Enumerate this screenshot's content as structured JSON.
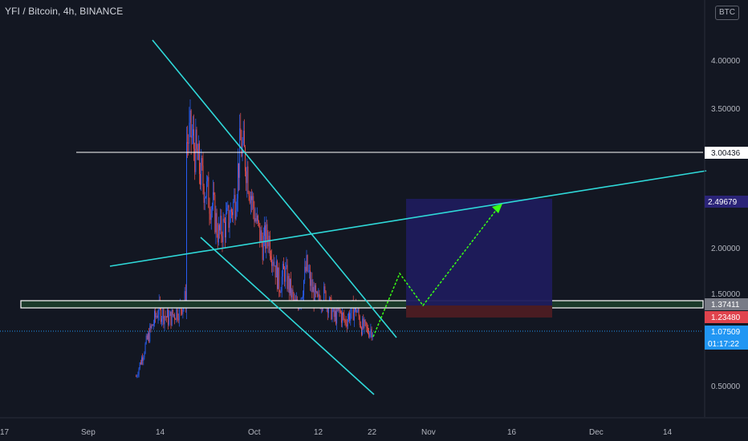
{
  "header": {
    "title": "YFI / Bitcoin, 4h, BINANCE",
    "currency": "BTC"
  },
  "colors": {
    "background": "#131722",
    "up": "#2962ff",
    "down": "#ef5350",
    "trendline": "#2fd9d9",
    "projection": "#39ff14",
    "target_box": "#1e1b5c",
    "stop_box": "#4a1c22",
    "support_fill": "#1b3a2a",
    "lastprice": "#2196f3"
  },
  "price_labels": {
    "resistance": "3.00436",
    "target": "2.49679",
    "support_top": "1.37411",
    "stop": "1.23480",
    "last": "1.07509",
    "countdown": "01:17:22"
  },
  "chart_data": {
    "type": "candlestick",
    "title": "YFI / Bitcoin, 4h, BINANCE",
    "y_unit": "BTC",
    "y_ticks": [
      "4.00000",
      "3.50000",
      "2.00000",
      "1.50000",
      "0.50000"
    ],
    "x_ticks": [
      "17",
      "Sep",
      "14",
      "Oct",
      "12",
      "22",
      "Nov",
      "16",
      "Dec",
      "14"
    ],
    "y_range": [
      0.3,
      4.3
    ],
    "price_path": [
      [
        "Aug 21",
        0.55
      ],
      [
        "Aug 23",
        0.95
      ],
      [
        "Aug 25",
        1.28
      ],
      [
        "Aug 27",
        1.18
      ],
      [
        "Aug 29",
        1.3
      ],
      [
        "Aug 30",
        1.4
      ],
      [
        "Sep 1",
        1.6
      ],
      [
        "Sep 2",
        2.4
      ],
      [
        "Sep 3",
        3.1
      ],
      [
        "Sep 4",
        3.3
      ],
      [
        "Sep 5",
        2.9
      ],
      [
        "Sep 6",
        3.05
      ],
      [
        "Sep 7",
        2.6
      ],
      [
        "Sep 8",
        2.1
      ],
      [
        "Sep 9",
        2.5
      ],
      [
        "Sep 10",
        2.1
      ],
      [
        "Sep 11",
        2.3
      ],
      [
        "Sep 12",
        2.9
      ],
      [
        "Sep 13",
        3.5
      ],
      [
        "Sep 14",
        4.2
      ],
      [
        "Sep 15",
        3.9
      ],
      [
        "Sep 16",
        3.4
      ],
      [
        "Sep 17",
        3.6
      ],
      [
        "Sep 18",
        3.0
      ],
      [
        "Sep 20",
        3.2
      ],
      [
        "Sep 22",
        2.7
      ],
      [
        "Sep 24",
        2.4
      ],
      [
        "Sep 25",
        2.1
      ],
      [
        "Sep 27",
        2.3
      ],
      [
        "Sep 28",
        2.5
      ],
      [
        "Sep 29",
        3.1
      ],
      [
        "Sep 30",
        2.9
      ],
      [
        "Oct 1",
        2.5
      ],
      [
        "Oct 2",
        2.2
      ],
      [
        "Oct 3",
        2.0
      ],
      [
        "Oct 4",
        2.1
      ],
      [
        "Oct 5",
        1.85
      ],
      [
        "Oct 6",
        1.55
      ],
      [
        "Oct 7",
        1.7
      ],
      [
        "Oct 8",
        1.5
      ],
      [
        "Oct 9",
        1.3
      ],
      [
        "Oct 10",
        1.45
      ],
      [
        "Oct 11",
        1.75
      ],
      [
        "Oct 12",
        1.5
      ],
      [
        "Oct 13",
        1.35
      ],
      [
        "Oct 14",
        1.45
      ],
      [
        "Oct 15",
        1.35
      ],
      [
        "Oct 16",
        1.2
      ],
      [
        "Oct 17",
        1.25
      ],
      [
        "Oct 18",
        1.15
      ],
      [
        "Oct 19",
        1.25
      ],
      [
        "Oct 20",
        1.3
      ],
      [
        "Oct 21",
        1.1
      ],
      [
        "Oct 22",
        1.05
      ],
      [
        "Oct 23",
        1.075
      ]
    ],
    "levels": [
      {
        "price": 3.00436
      },
      {
        "price": 2.49679
      },
      {
        "price": 1.37411
      },
      {
        "price": 1.2348
      },
      {
        "price": 1.07509
      }
    ],
    "trendlines": [
      {
        "from": [
          "Sep 14",
          4.2
        ],
        "to": [
          "Oct 23",
          1.0
        ]
      },
      {
        "from": [
          "Sep 5",
          1.8
        ],
        "to": [
          "Dec 25",
          2.88
        ]
      },
      {
        "from": [
          "Sep 25",
          2.1
        ],
        "to": [
          "Oct 23",
          0.35
        ]
      }
    ],
    "projection": [
      [
        "Oct 23",
        1.05
      ],
      [
        "Oct 26",
        1.73
      ],
      [
        "Oct 29",
        1.35
      ],
      [
        "Nov 13",
        2.47
      ]
    ],
    "position_box": {
      "from": "Oct 27",
      "to": "Nov 22",
      "target": 2.49679,
      "entry": 1.37411,
      "stop": 1.2348
    },
    "support_zone": [
      1.3,
      1.38
    ],
    "grid": false
  }
}
